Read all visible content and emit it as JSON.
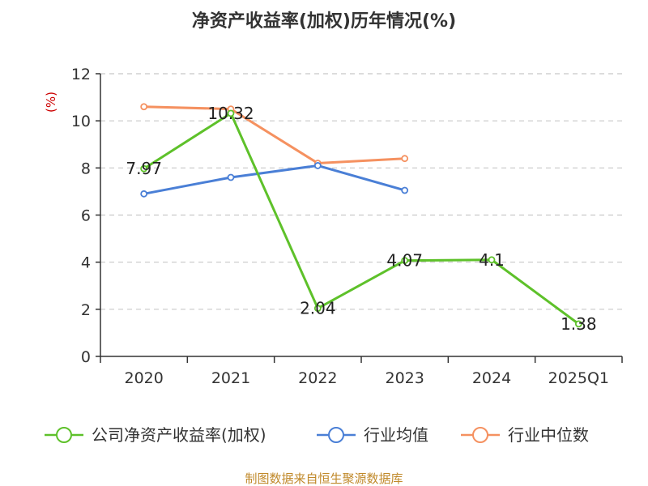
{
  "chart_data": {
    "type": "line",
    "title": "净资产收益率(加权)历年情况(%)",
    "ylabel": "(%)",
    "xlabel": "",
    "categories": [
      "2020",
      "2021",
      "2022",
      "2023",
      "2024",
      "2025Q1"
    ],
    "ylim": [
      0,
      12
    ],
    "yticks": [
      "0",
      "2",
      "4",
      "6",
      "8",
      "10",
      "12"
    ],
    "grid": true,
    "legend_position": "bottom",
    "series": [
      {
        "name": "公司净资产收益率(加权)",
        "color": "#5ec12a",
        "values": [
          7.97,
          10.32,
          2.04,
          4.07,
          4.1,
          1.38
        ],
        "labels": [
          "7.97",
          "10.32",
          "2.04",
          "4.07",
          "4.1",
          "1.38"
        ]
      },
      {
        "name": "行业均值",
        "color": "#4a7fd6",
        "values": [
          6.9,
          7.6,
          8.1,
          7.05,
          null,
          null
        ]
      },
      {
        "name": "行业中位数",
        "color": "#f59160",
        "values": [
          10.6,
          10.5,
          8.2,
          8.4,
          null,
          null
        ]
      }
    ],
    "source": "制图数据来自恒生聚源数据库",
    "unit_color": "#cc0000",
    "source_color": "#c0892a"
  }
}
